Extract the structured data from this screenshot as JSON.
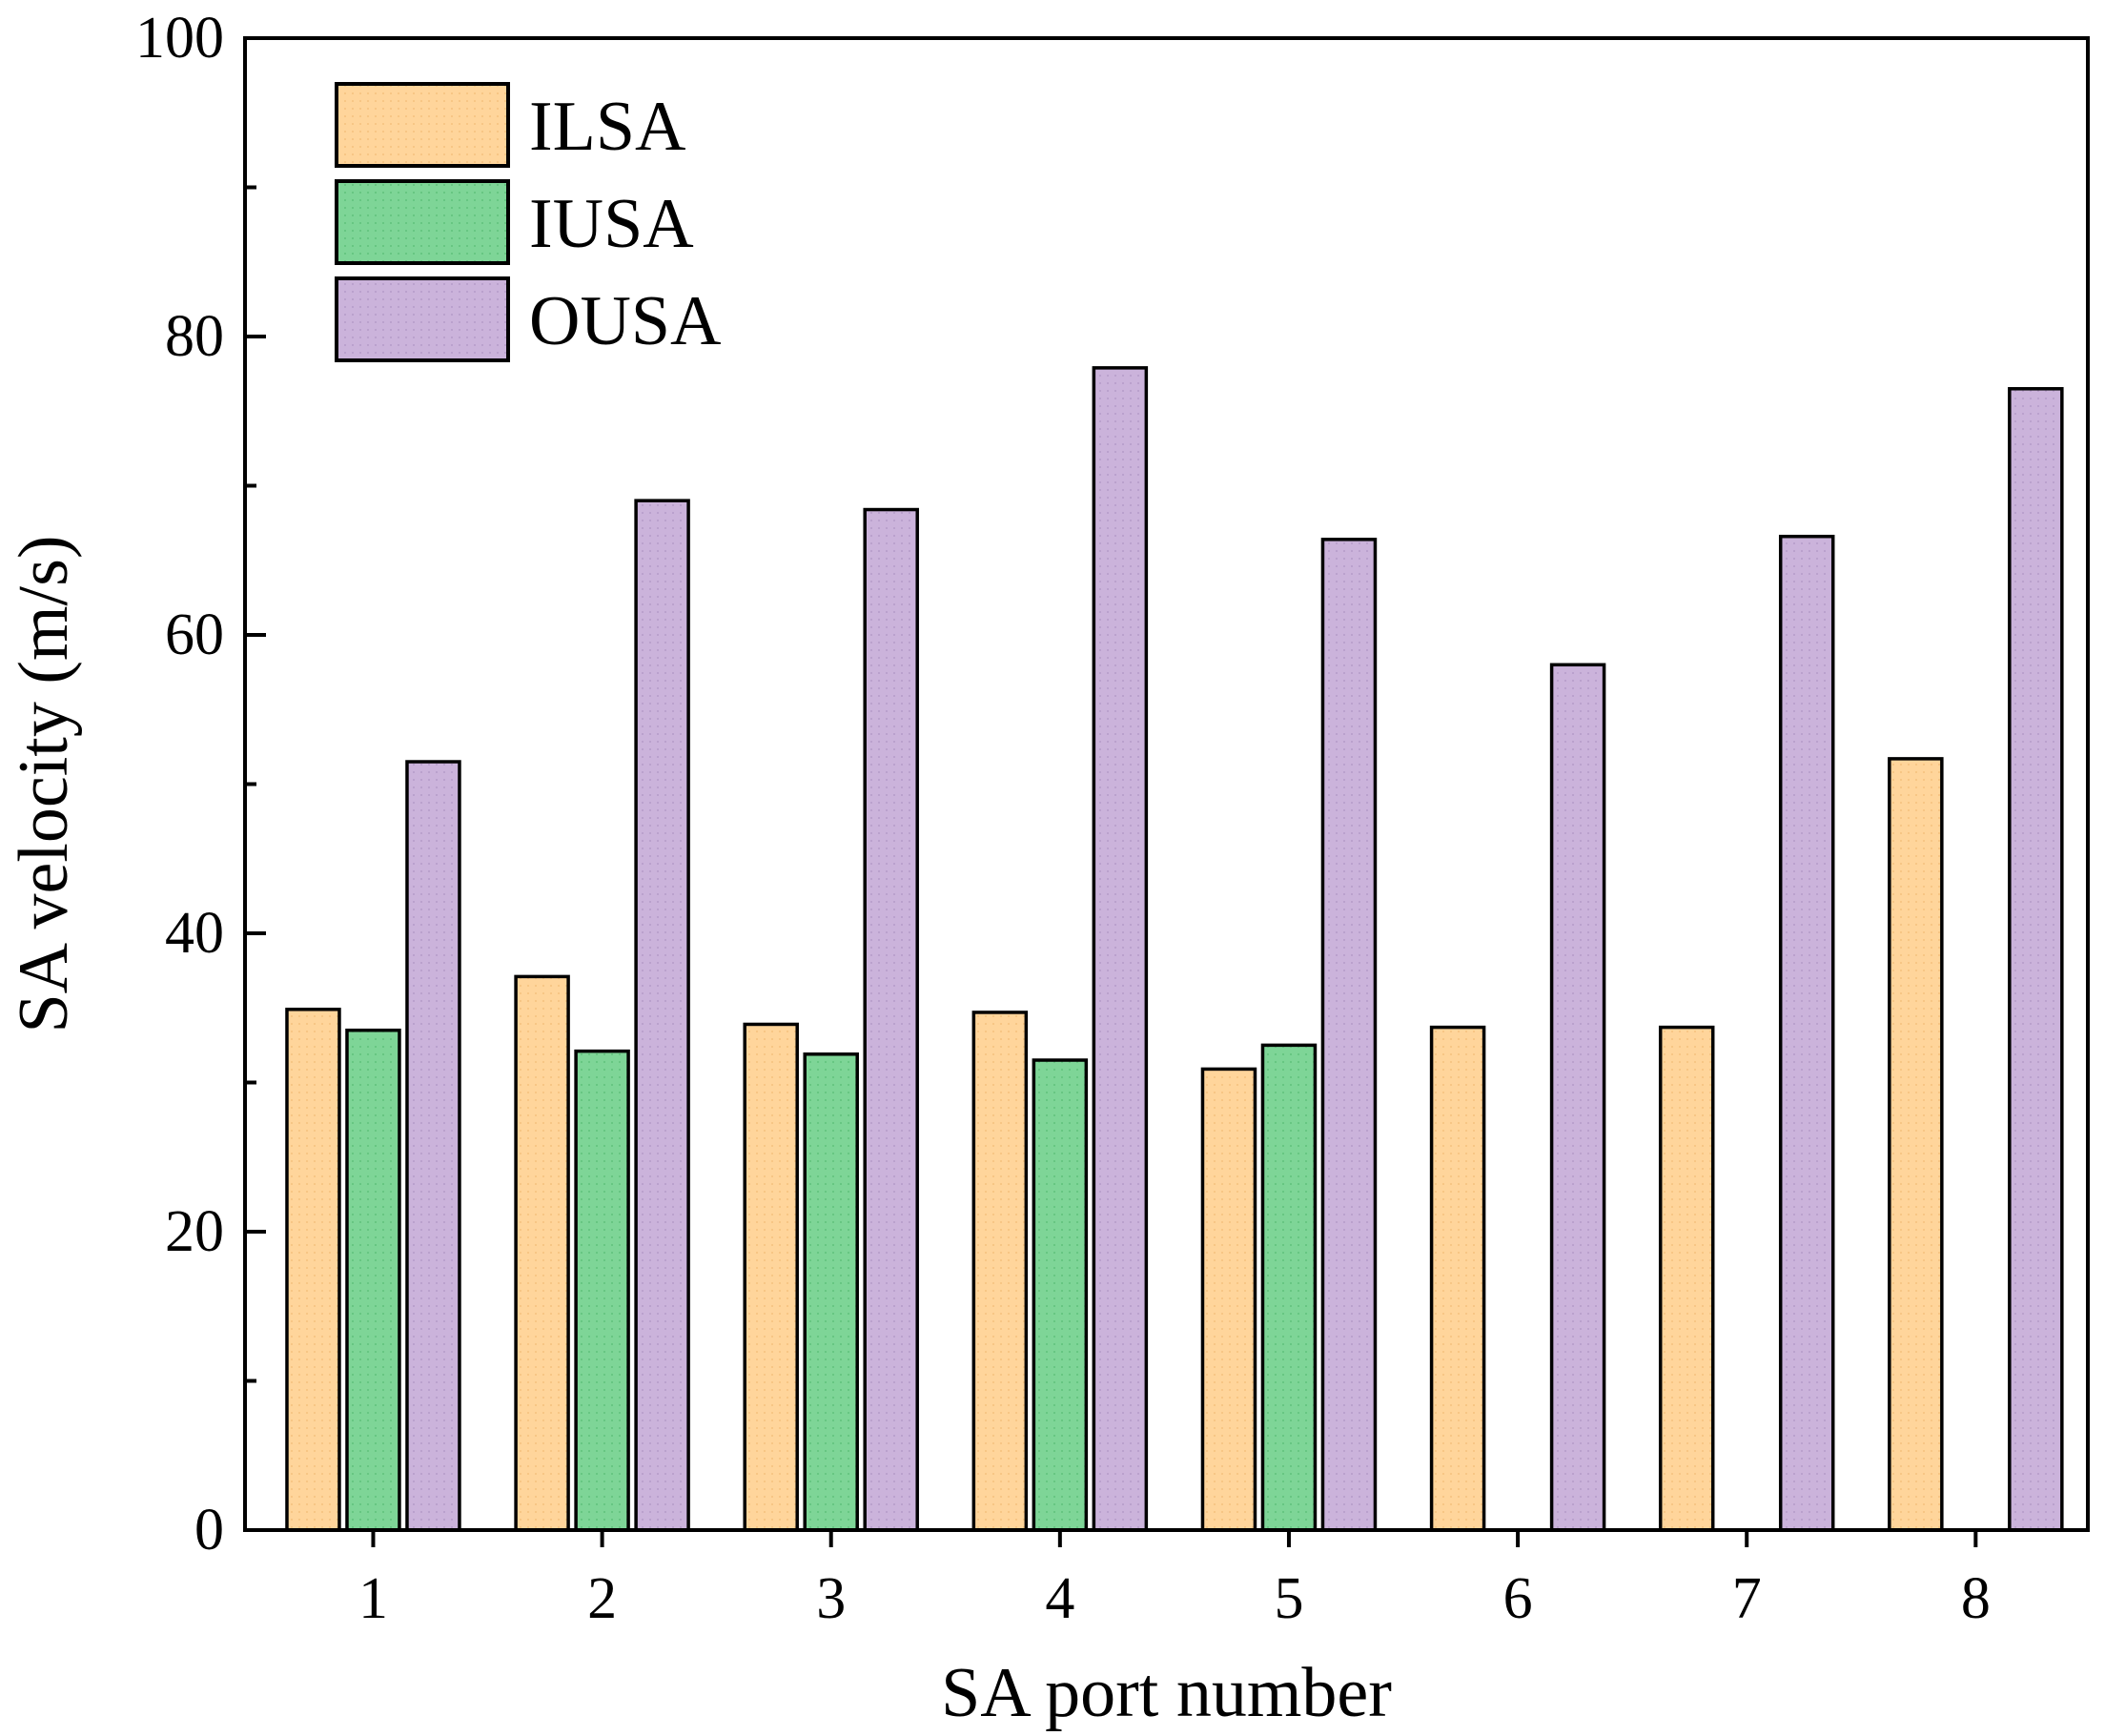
{
  "chart_data": {
    "type": "bar",
    "title": "",
    "xlabel": "SA port number",
    "ylabel": "SA velocity (m/s)",
    "categories": [
      "1",
      "2",
      "3",
      "4",
      "5",
      "6",
      "7",
      "8"
    ],
    "ylim": [
      0,
      100
    ],
    "yticks": [
      "0",
      "20",
      "40",
      "60",
      "80",
      "100"
    ],
    "grid": false,
    "legend_position": "top-left",
    "series": [
      {
        "name": "ILSA",
        "color": "#FFD59B",
        "values": [
          34.9,
          37.1,
          33.9,
          34.7,
          30.9,
          33.7,
          33.7,
          51.7
        ]
      },
      {
        "name": "IUSA",
        "color": "#7ED597",
        "values": [
          33.5,
          32.1,
          31.9,
          31.5,
          32.5,
          null,
          null,
          null
        ]
      },
      {
        "name": "OUSA",
        "color": "#CBB3DB",
        "values": [
          51.5,
          69.0,
          68.4,
          77.9,
          66.4,
          58.0,
          66.6,
          76.5
        ]
      }
    ]
  }
}
